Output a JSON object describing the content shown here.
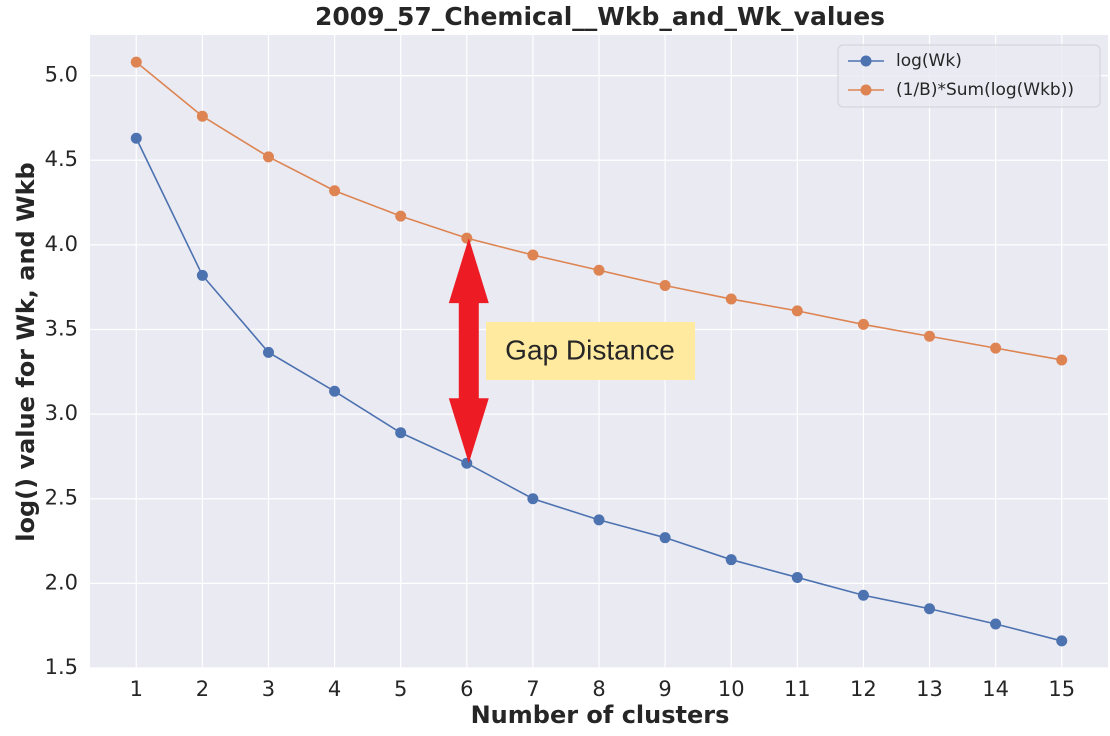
{
  "chart_data": {
    "type": "line",
    "title": "2009_57_Chemical__Wkb_and_Wk_values",
    "xlabel": "Number of clusters",
    "ylabel": "log() value for Wk, and Wkb",
    "x": [
      1,
      2,
      3,
      4,
      5,
      6,
      7,
      8,
      9,
      10,
      11,
      12,
      13,
      14,
      15
    ],
    "series": [
      {
        "name": "log(Wk)",
        "color": "#4c72b0",
        "values": [
          4.63,
          3.82,
          3.365,
          3.135,
          2.89,
          2.71,
          2.5,
          2.375,
          2.27,
          2.14,
          2.035,
          1.93,
          1.85,
          1.76,
          1.66
        ]
      },
      {
        "name": "(1/B)*Sum(log(Wkb))",
        "color": "#dd8452",
        "values": [
          5.08,
          4.76,
          4.52,
          4.32,
          4.17,
          4.04,
          3.94,
          3.85,
          3.76,
          3.68,
          3.61,
          3.53,
          3.46,
          3.39,
          3.32
        ]
      }
    ],
    "xlim": [
      0.3,
      15.7
    ],
    "xticks": [
      1,
      2,
      3,
      4,
      5,
      6,
      7,
      8,
      9,
      10,
      11,
      12,
      13,
      14,
      15
    ],
    "ylim": [
      1.5,
      5.24
    ],
    "yticks": [
      1.5,
      {
        "value": 2,
        "label": "2.0"
      },
      2.5,
      {
        "value": 3,
        "label": "3.0"
      },
      3.5,
      {
        "value": 4,
        "label": "4.0"
      },
      4.5,
      {
        "value": 5,
        "label": "5.0"
      }
    ],
    "grid": true,
    "legend": "upper right",
    "annotation": "Gap Distance"
  }
}
